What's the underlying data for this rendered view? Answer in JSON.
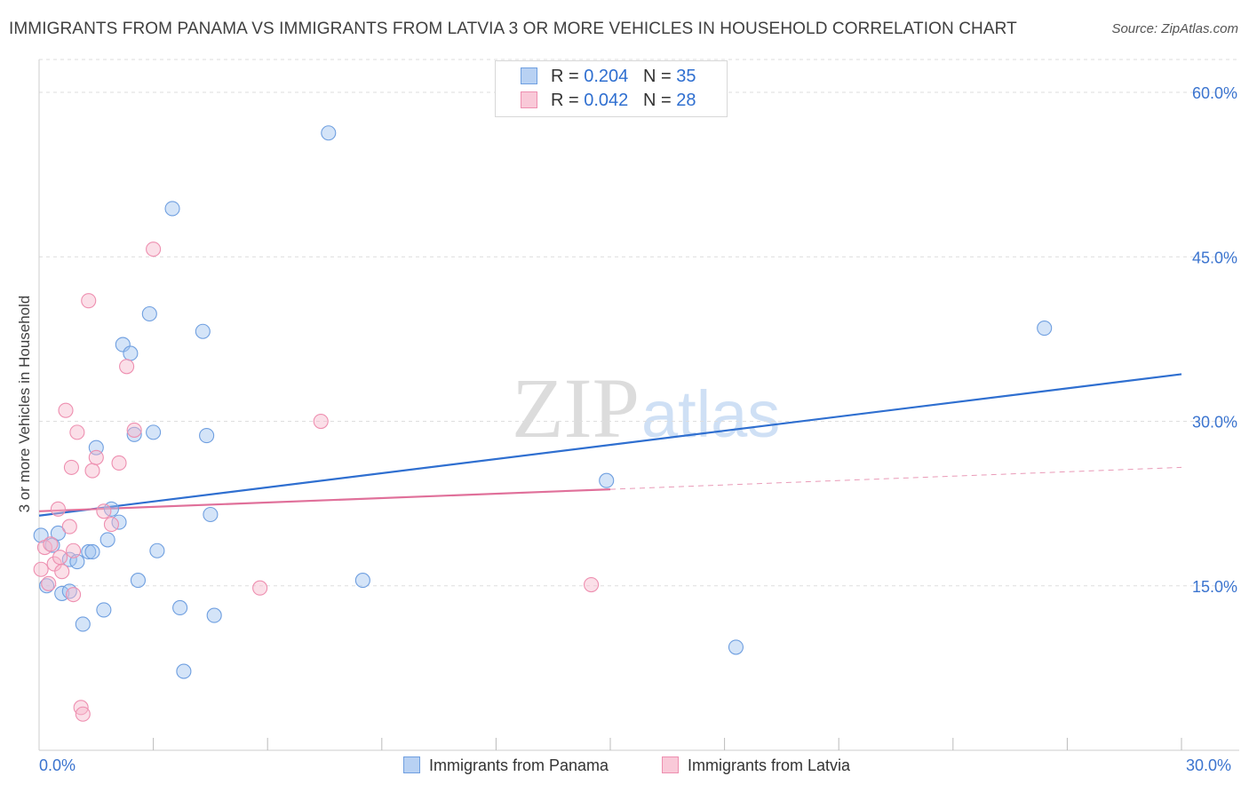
{
  "header": {
    "title": "IMMIGRANTS FROM PANAMA VS IMMIGRANTS FROM LATVIA 3 OR MORE VEHICLES IN HOUSEHOLD CORRELATION CHART",
    "source": "Source: ZipAtlas.com"
  },
  "legend": {
    "panama": {
      "r_label": "R = ",
      "r_value": "0.204",
      "n_label": "N = ",
      "n_value": "35"
    },
    "latvia": {
      "r_label": "R = ",
      "r_value": "0.042",
      "n_label": "N = ",
      "n_value": "28"
    }
  },
  "watermark": {
    "zip": "ZIP",
    "atlas": "atlas"
  },
  "chart_data": {
    "type": "scatter",
    "title": "IMMIGRANTS FROM PANAMA VS IMMIGRANTS FROM LATVIA 3 OR MORE VEHICLES IN HOUSEHOLD CORRELATION CHART",
    "xlabel": "",
    "ylabel": "3 or more Vehicles in Household",
    "xlim": [
      0,
      30
    ],
    "ylim": [
      0,
      63
    ],
    "x_tick_labels": [
      "0.0%",
      "30.0%"
    ],
    "y_ticks": [
      15,
      30,
      45,
      60
    ],
    "y_tick_labels": [
      "15.0%",
      "30.0%",
      "45.0%",
      "60.0%"
    ],
    "grid": true,
    "legend_position": "top-center",
    "colors": {
      "panama": "#6f9fe0",
      "latvia": "#ee8fb0",
      "panama_line": "#2f6fd0",
      "latvia_line": "#e0709a"
    },
    "series": [
      {
        "name": "Immigrants from Panama",
        "key": "panama",
        "points": [
          [
            0.05,
            19.6
          ],
          [
            0.2,
            15.0
          ],
          [
            0.35,
            18.7
          ],
          [
            0.5,
            19.8
          ],
          [
            0.6,
            14.3
          ],
          [
            0.8,
            17.4
          ],
          [
            1.0,
            17.2
          ],
          [
            1.15,
            11.5
          ],
          [
            1.3,
            18.1
          ],
          [
            1.4,
            18.1
          ],
          [
            1.5,
            27.6
          ],
          [
            1.7,
            12.8
          ],
          [
            1.8,
            19.2
          ],
          [
            1.9,
            22.0
          ],
          [
            2.1,
            20.8
          ],
          [
            2.2,
            37.0
          ],
          [
            2.4,
            36.2
          ],
          [
            2.5,
            28.8
          ],
          [
            2.6,
            15.5
          ],
          [
            2.9,
            39.8
          ],
          [
            3.0,
            29.0
          ],
          [
            3.1,
            18.2
          ],
          [
            3.5,
            49.4
          ],
          [
            3.7,
            13.0
          ],
          [
            3.8,
            7.2
          ],
          [
            4.3,
            38.2
          ],
          [
            4.4,
            28.7
          ],
          [
            4.5,
            21.5
          ],
          [
            4.6,
            12.3
          ],
          [
            7.6,
            56.3
          ],
          [
            8.5,
            15.5
          ],
          [
            14.9,
            24.6
          ],
          [
            18.3,
            9.4
          ],
          [
            26.4,
            38.5
          ],
          [
            0.8,
            14.5
          ]
        ],
        "trend": {
          "x": [
            0,
            30
          ],
          "y": [
            21.4,
            34.3
          ]
        }
      },
      {
        "name": "Immigrants from Latvia",
        "key": "latvia",
        "points": [
          [
            0.05,
            16.5
          ],
          [
            0.15,
            18.5
          ],
          [
            0.25,
            15.2
          ],
          [
            0.4,
            17.0
          ],
          [
            0.5,
            22.0
          ],
          [
            0.6,
            16.3
          ],
          [
            0.7,
            31.0
          ],
          [
            0.8,
            20.4
          ],
          [
            0.9,
            18.2
          ],
          [
            0.9,
            14.2
          ],
          [
            1.0,
            29.0
          ],
          [
            1.1,
            3.9
          ],
          [
            1.15,
            3.3
          ],
          [
            1.3,
            41.0
          ],
          [
            1.4,
            25.5
          ],
          [
            1.5,
            26.7
          ],
          [
            1.7,
            21.8
          ],
          [
            1.9,
            20.6
          ],
          [
            2.1,
            26.2
          ],
          [
            2.3,
            35.0
          ],
          [
            2.5,
            29.2
          ],
          [
            3.0,
            45.7
          ],
          [
            5.8,
            14.8
          ],
          [
            7.4,
            30.0
          ],
          [
            14.5,
            15.1
          ],
          [
            0.85,
            25.8
          ],
          [
            0.3,
            18.8
          ],
          [
            0.55,
            17.6
          ]
        ],
        "trend": {
          "x": [
            0,
            15
          ],
          "y": [
            21.8,
            23.8
          ]
        },
        "trend_extension": {
          "x": [
            15,
            30
          ],
          "y": [
            23.8,
            25.8
          ]
        }
      }
    ]
  },
  "bottom_legend": {
    "panama": "Immigrants from Panama",
    "latvia": "Immigrants from Latvia"
  }
}
